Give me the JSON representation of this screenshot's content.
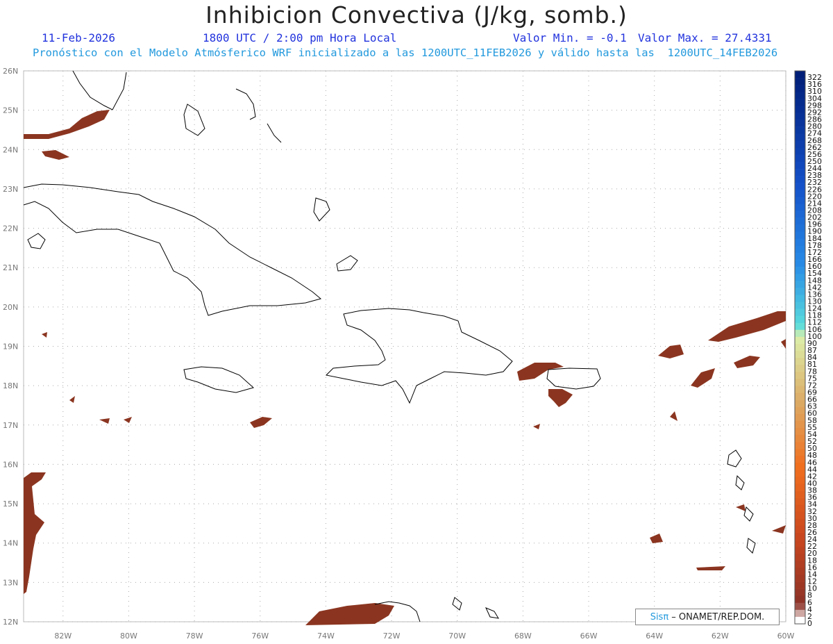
{
  "header": {
    "title": "Inhibicion Convectiva (J/kg, somb.)",
    "date": "11-Feb-2026",
    "time": "1800 UTC / 2:00 pm Hora Local",
    "valmin": "Valor Min. = -0.1",
    "valmax": "Valor Max. = 27.4331",
    "forecast": "Pronóstico con el Modelo Atmósferico WRF inicializado a las 1200UTC_11FEB2026 y válido hasta las  1200UTC_14FEB2026"
  },
  "map": {
    "lat_labels": [
      "26N",
      "25N",
      "24N",
      "23N",
      "22N",
      "21N",
      "20N",
      "19N",
      "18N",
      "17N",
      "16N",
      "15N",
      "14N",
      "13N",
      "12N"
    ],
    "lon_labels": [
      "82W",
      "80W",
      "78W",
      "76W",
      "74W",
      "72W",
      "70W",
      "68W",
      "66W",
      "64W",
      "62W",
      "60W"
    ],
    "lat_range": [
      12,
      26
    ],
    "lon_range": [
      -83.2,
      -60
    ],
    "grid": true,
    "shading_color": "#8b3520"
  },
  "colorbar": {
    "labels": [
      "322",
      "316",
      "310",
      "304",
      "298",
      "292",
      "286",
      "280",
      "274",
      "268",
      "262",
      "256",
      "250",
      "244",
      "238",
      "232",
      "226",
      "220",
      "214",
      "208",
      "202",
      "196",
      "190",
      "184",
      "178",
      "172",
      "166",
      "160",
      "154",
      "148",
      "142",
      "136",
      "130",
      "124",
      "118",
      "112",
      "106",
      "100",
      "90",
      "87",
      "84",
      "81",
      "78",
      "75",
      "72",
      "69",
      "66",
      "63",
      "60",
      "58",
      "55",
      "54",
      "52",
      "50",
      "48",
      "46",
      "44",
      "42",
      "40",
      "38",
      "36",
      "34",
      "32",
      "30",
      "28",
      "26",
      "24",
      "22",
      "20",
      "18",
      "16",
      "14",
      "12",
      "10",
      "8",
      "6",
      "4",
      "2",
      "0"
    ]
  },
  "credit": {
    "sis": "Sisπ",
    "org": " – ONAMET/REP.DOM."
  }
}
